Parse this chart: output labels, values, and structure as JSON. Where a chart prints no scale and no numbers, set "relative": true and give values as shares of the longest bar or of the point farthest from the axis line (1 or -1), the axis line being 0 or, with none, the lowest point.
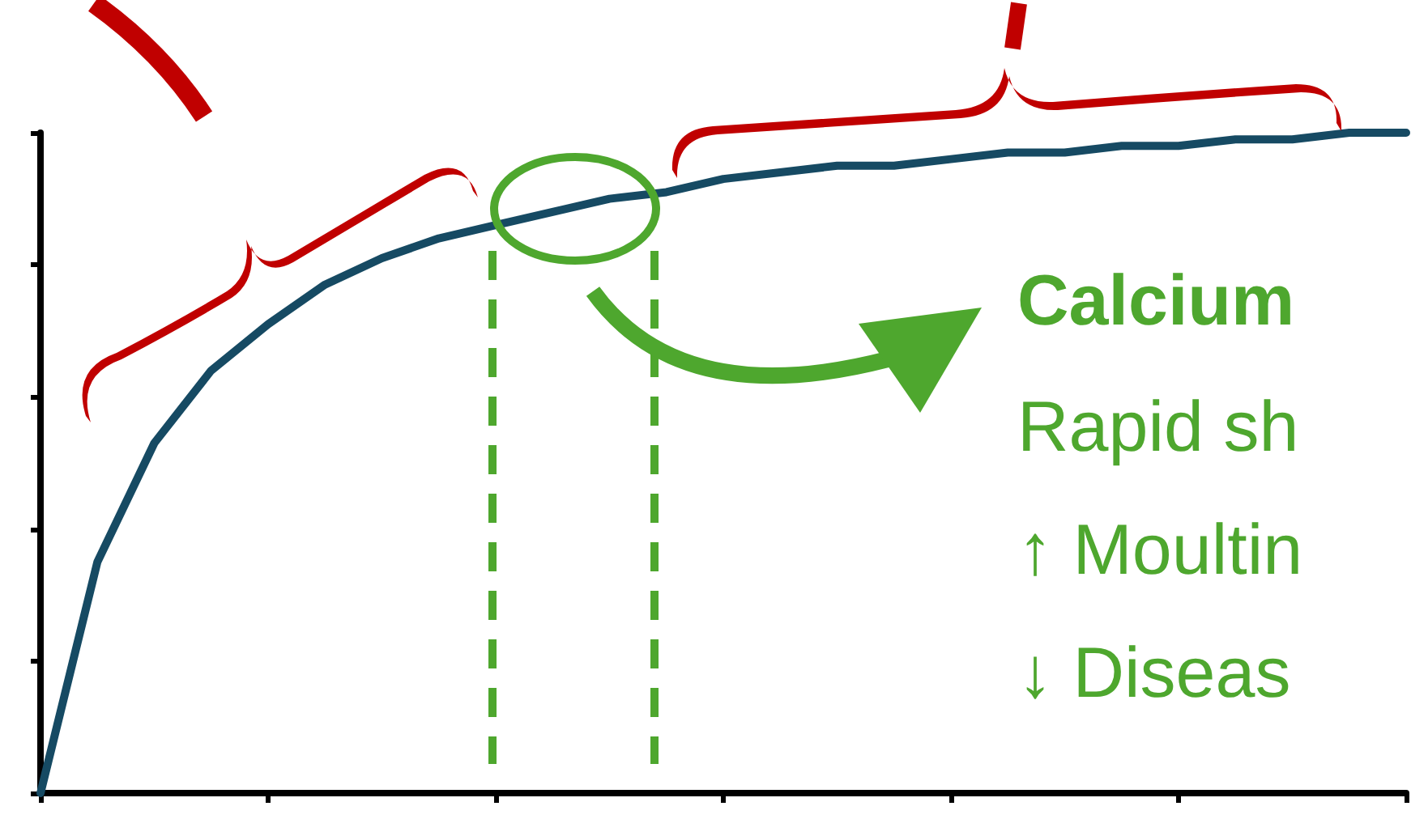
{
  "chart_data": {
    "type": "line",
    "relative": true,
    "categories": [
      null,
      null,
      null,
      null,
      null,
      null,
      null,
      null,
      null,
      null,
      null,
      null,
      null,
      null,
      null,
      null,
      null,
      null,
      null,
      null,
      null,
      null,
      null,
      null,
      null
    ],
    "series": [
      {
        "color": "#164a63",
        "values": [
          0,
          0.35,
          0.53,
          0.64,
          0.71,
          0.77,
          0.81,
          0.84,
          0.86,
          0.88,
          0.9,
          0.91,
          0.93,
          0.94,
          0.95,
          0.95,
          0.96,
          0.97,
          0.97,
          0.98,
          0.98,
          0.99,
          0.99,
          1,
          1
        ]
      }
    ],
    "annotations": [
      "Calcium",
      "Rapid sh",
      "↑ Moultin",
      "↓ Diseas"
    ],
    "grid": false,
    "marker": "none",
    "line_style": "solid"
  }
}
